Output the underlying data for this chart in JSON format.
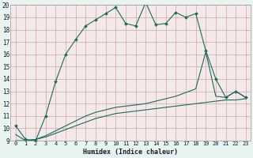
{
  "xlabel": "Humidex (Indice chaleur)",
  "ylabel": "",
  "bg_color": "#e8f4f0",
  "plot_bg_color": "#f5e8e8",
  "grid_color": "#c8a8a8",
  "line_color": "#1a6b5a",
  "xlim": [
    -0.5,
    23.5
  ],
  "ylim": [
    9,
    20
  ],
  "yticks": [
    9,
    10,
    11,
    12,
    13,
    14,
    15,
    16,
    17,
    18,
    19,
    20
  ],
  "xticks": [
    0,
    1,
    2,
    3,
    4,
    5,
    6,
    7,
    8,
    9,
    10,
    11,
    12,
    13,
    14,
    15,
    16,
    17,
    18,
    19,
    20,
    21,
    22,
    23
  ],
  "line1_x": [
    0,
    1,
    2,
    3,
    4,
    5,
    6,
    7,
    8,
    9,
    10,
    11,
    12,
    13,
    14,
    15,
    16,
    17,
    18,
    19,
    20,
    21,
    22,
    23
  ],
  "line1_y": [
    10.2,
    9.1,
    9.0,
    11.0,
    13.8,
    16.0,
    17.2,
    18.3,
    18.8,
    19.3,
    19.8,
    18.5,
    18.3,
    20.2,
    18.4,
    18.5,
    19.4,
    19.0,
    19.3,
    16.3,
    14.0,
    12.5,
    13.0,
    12.5
  ],
  "line2_x": [
    0,
    1,
    2,
    3,
    4,
    5,
    6,
    7,
    8,
    9,
    10,
    11,
    12,
    13,
    14,
    15,
    16,
    17,
    18,
    19,
    20,
    21,
    22,
    23
  ],
  "line2_y": [
    9.0,
    9.0,
    9.1,
    9.3,
    9.6,
    9.9,
    10.2,
    10.5,
    10.8,
    11.0,
    11.2,
    11.3,
    11.4,
    11.5,
    11.6,
    11.7,
    11.8,
    11.9,
    12.0,
    12.1,
    12.2,
    12.3,
    12.3,
    12.4
  ],
  "line3_x": [
    0,
    1,
    2,
    3,
    4,
    5,
    6,
    7,
    8,
    9,
    10,
    11,
    12,
    13,
    14,
    15,
    16,
    17,
    18,
    19,
    20,
    21,
    22,
    23
  ],
  "line3_y": [
    9.5,
    9.0,
    9.1,
    9.4,
    9.8,
    10.2,
    10.6,
    11.0,
    11.3,
    11.5,
    11.7,
    11.8,
    11.9,
    12.0,
    12.2,
    12.4,
    12.6,
    12.9,
    13.2,
    16.2,
    12.6,
    12.5,
    13.0,
    12.5
  ]
}
